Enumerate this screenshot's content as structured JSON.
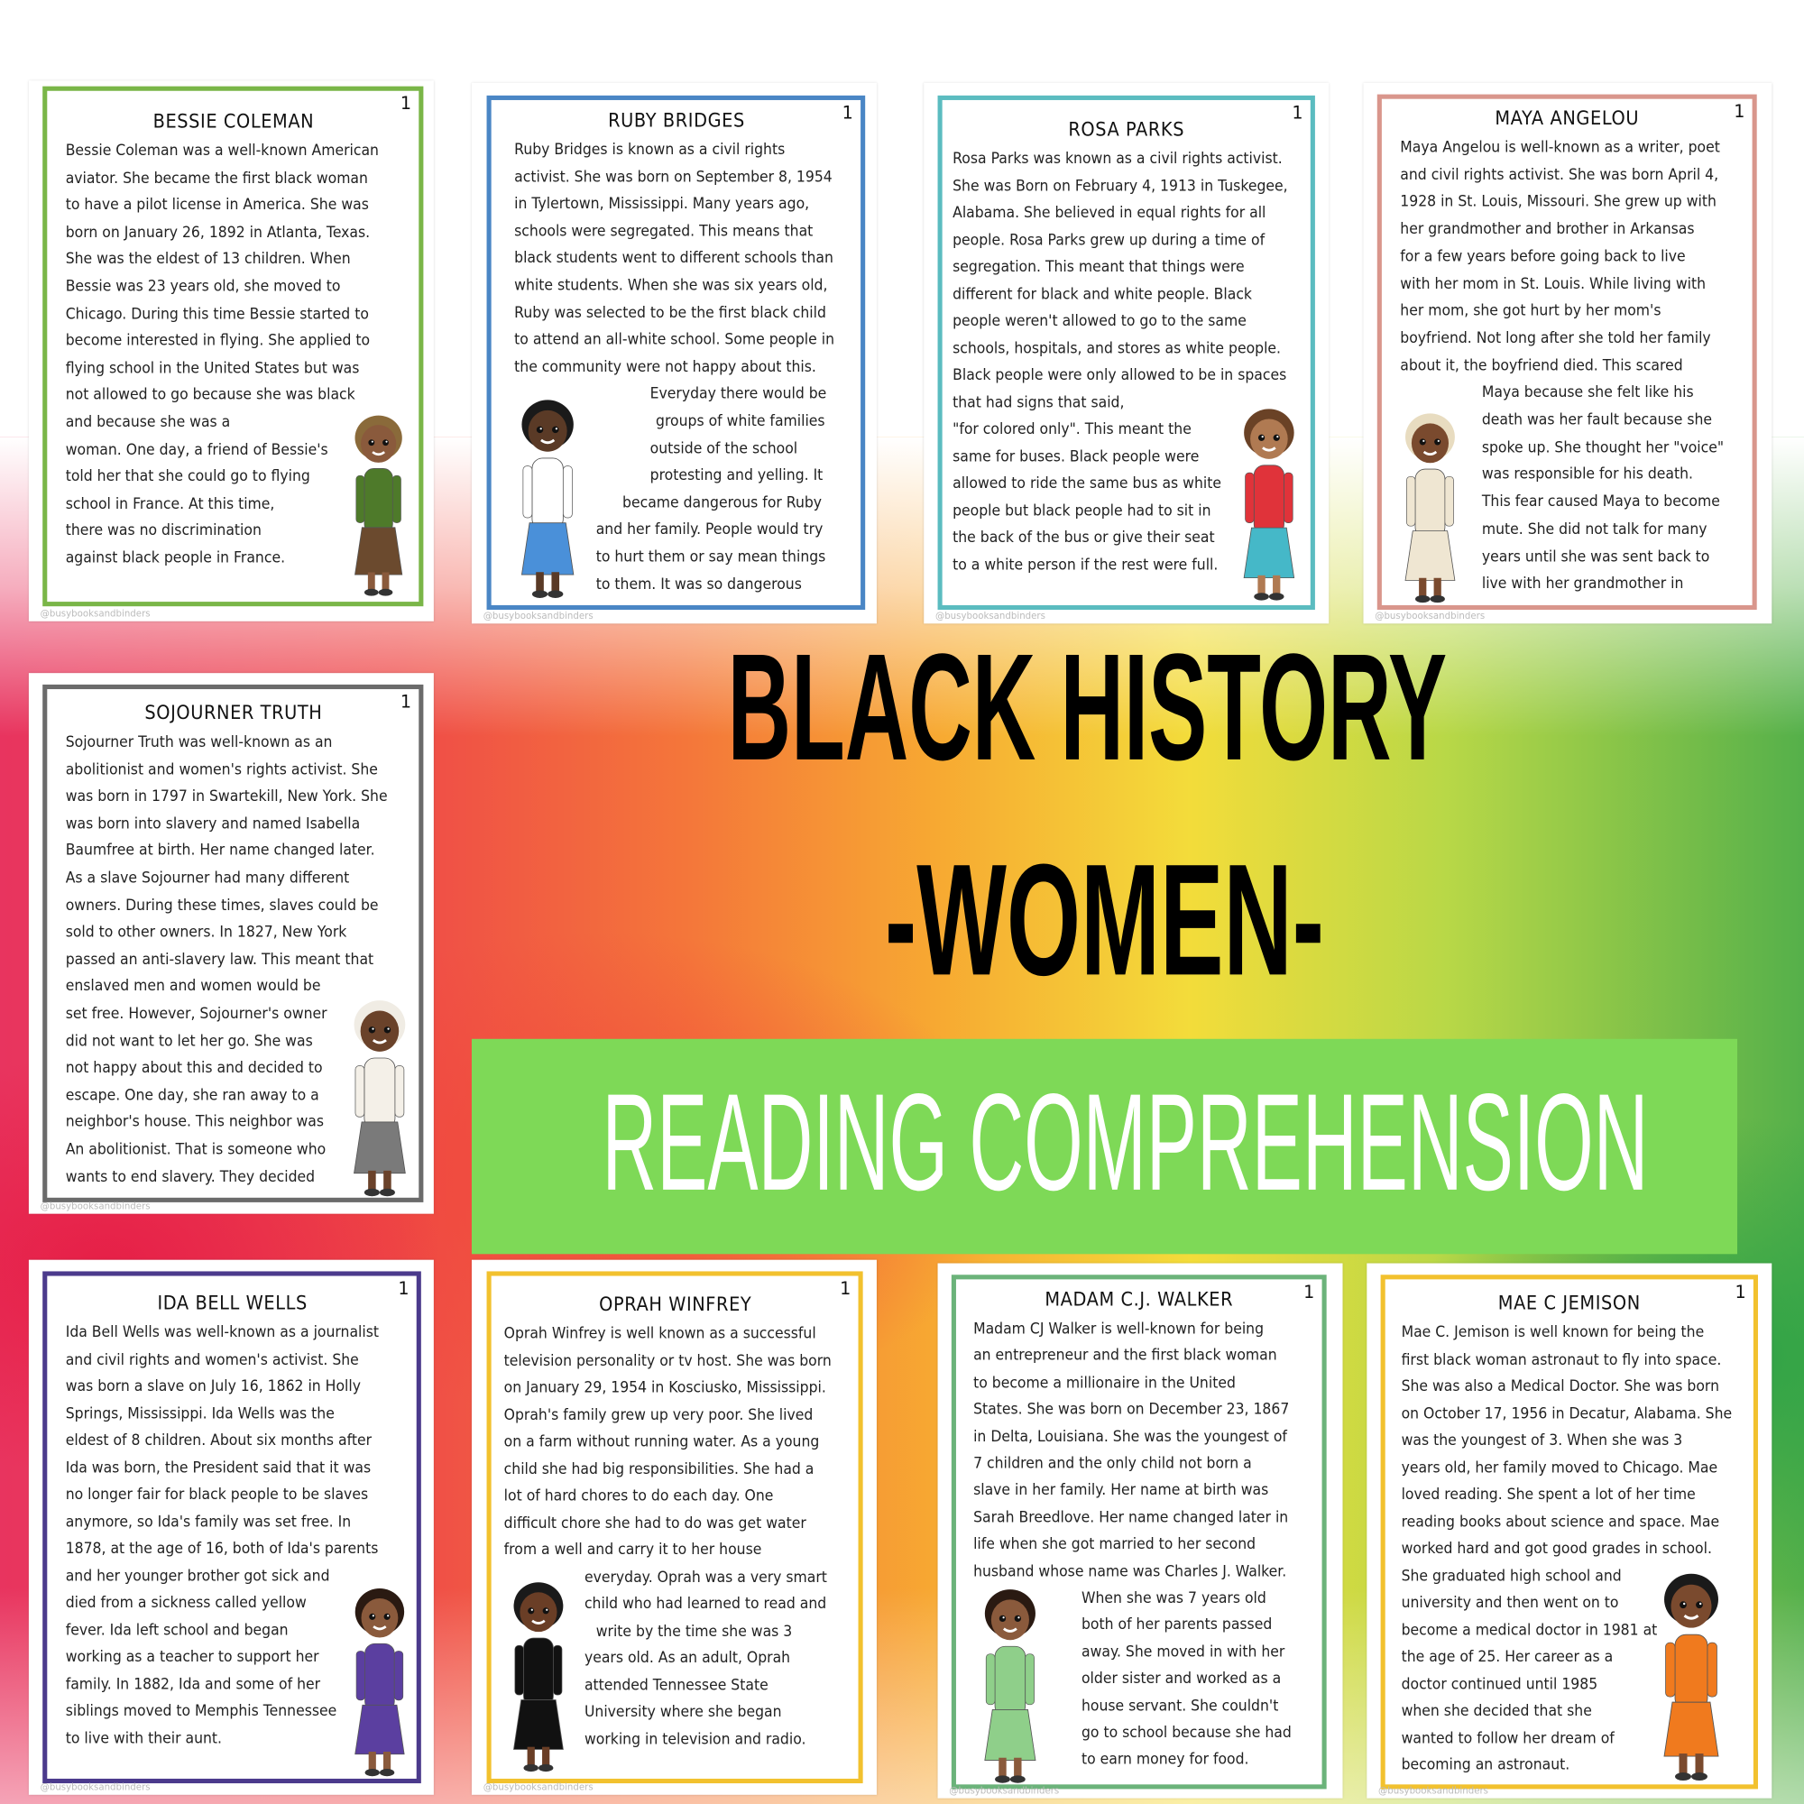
{
  "watermark": "@busybooksandbinders",
  "headline": {
    "line1": "BLACK HISTORY",
    "line2": "-WOMEN-",
    "banner": "READING COMPREHENSION",
    "banner_color": "#7ed957"
  },
  "cards": [
    {
      "title": "BESSIE COLEMAN",
      "page": "1",
      "border_color": "#7ab648",
      "figure": {
        "skin": "#8a5a3c",
        "hair": "#8a6a3a",
        "top": "#4e7a2a",
        "bottom": "#6b4a2e"
      },
      "lines": [
        "Bessie Coleman was a well-known American",
        "aviator. She became the first black woman",
        "to have a pilot license in America.  She was",
        "born on January 26, 1892 in Atlanta, Texas.",
        "She was the eldest of 13 children. When",
        "Bessie was 23 years old, she moved to",
        "Chicago. During this time Bessie started to",
        "become interested in flying. She applied to",
        "flying school in the United States but was",
        "not allowed to go because she was black",
        "and because she was a",
        "woman. One day, a friend of Bessie's",
        "told her that she could go to flying",
        "school in France. At this time,",
        "there was no discrimination",
        "against black people in France."
      ]
    },
    {
      "title": "RUBY BRIDGES",
      "page": "1",
      "border_color": "#4a86c5",
      "figure": {
        "skin": "#5a3a26",
        "hair": "#1a1a1a",
        "top": "#ffffff",
        "bottom": "#4a90d9"
      },
      "lines": [
        "Ruby Bridges is known as a civil rights",
        "activist. She was born on September 8, 1954",
        "in Tylertown, Mississippi. Many years ago,",
        "schools were segregated. This means that",
        "black students went to different schools than",
        "white students. When she was six years old,",
        "Ruby was selected to be the first black child",
        "to attend an all-white school. Some people in",
        "the community were not happy about this.",
        "Everyday there would be",
        "groups of white families",
        "outside of the school",
        "protesting and yelling. It",
        "became dangerous for Ruby",
        "and her family. People would try",
        "to hurt them or say mean things",
        "to them. It was so dangerous"
      ]
    },
    {
      "title": "ROSA PARKS",
      "page": "1",
      "border_color": "#5bbcc0",
      "figure": {
        "skin": "#b07a52",
        "hair": "#6a4226",
        "top": "#e0333a",
        "bottom": "#45b8c8"
      },
      "lines": [
        "Rosa Parks was known as a civil rights activist.",
        "She was Born on February 4, 1913 in Tuskegee,",
        "Alabama. She believed in equal rights for all",
        "people. Rosa Parks grew up during a time of",
        "segregation. This meant that things were",
        "different for black and white people. Black",
        "people weren't allowed to go to the same",
        "schools, hospitals, and stores as white people.",
        "Black people were only allowed to be in spaces",
        "that had signs that said,",
        "\"for colored only\". This meant the",
        "same for buses. Black people were",
        "allowed to ride the same bus as white",
        "people but black people had to sit in",
        "the back of the bus or give their seat",
        "to a white person if the rest were full."
      ]
    },
    {
      "title": "MAYA ANGELOU",
      "page": "1",
      "border_color": "#d9968c",
      "figure": {
        "skin": "#7a4a2e",
        "hair": "#e8dcc0",
        "top": "#efe6d2",
        "bottom": "#efe6d2"
      },
      "lines": [
        "Maya Angelou is well-known as a writer, poet",
        "and civil rights activist. She was born April 4,",
        "1928 in St. Louis, Missouri.  She grew up with",
        "her grandmother and brother in Arkansas",
        "for a few years before going back to live",
        "with her mom in St. Louis. While living with",
        "her mom, she got hurt by her mom's",
        "boyfriend. Not long after she told her family",
        "about it, the boyfriend died. This scared",
        "Maya because she felt like his",
        "death was her fault because she",
        "spoke up. She thought her \"voice\"",
        "was responsible for his death.",
        "This fear caused Maya to become",
        "mute. She did not talk for many",
        "years until she was sent back to",
        "live with her grandmother in"
      ]
    },
    {
      "title": "SOJOURNER TRUTH",
      "page": "1",
      "border_color": "#6b6b6b",
      "figure": {
        "skin": "#6a422a",
        "hair": "#f0ece4",
        "top": "#f4f0e8",
        "bottom": "#7a7a7a"
      },
      "lines": [
        "Sojourner Truth was well-known as an",
        "abolitionist and women's rights activist. She",
        "was born in 1797 in Swartekill, New York. She",
        "was born into slavery and named Isabella",
        "Baumfree at birth. Her name changed later.",
        "As a slave Sojourner had many different",
        "owners. During these times, slaves could be",
        "sold to other owners. In 1827, New York",
        "passed an anti-slavery law. This meant that",
        "enslaved men and women would be",
        "set free. However, Sojourner's owner",
        "did not want to let her go. She was",
        "not happy about this and decided to",
        "escape. One day, she ran away to a",
        "neighbor's house. This neighbor was",
        "An abolitionist. That is someone who",
        "wants to end slavery. They decided"
      ]
    },
    {
      "title": "IDA BELL WELLS",
      "page": "1",
      "border_color": "#4b3a8c",
      "figure": {
        "skin": "#8a5a3c",
        "hair": "#2a1a12",
        "top": "#5b3fa0",
        "bottom": "#5b3fa0"
      },
      "lines": [
        "Ida Bell Wells was well-known as a journalist",
        "and civil rights and women's activist. She",
        "was born a slave on July 16, 1862 in Holly",
        "Springs, Mississippi. Ida Wells was the",
        "eldest of 8 children. About six months after",
        "Ida was born, the President said that it was",
        "no longer fair for black people to be slaves",
        "anymore, so Ida's family was set free. In",
        "1878, at the age of 16, both of Ida's parents",
        "and her younger brother got sick and",
        "died from a sickness called yellow",
        "fever. Ida left school and began",
        "working as a teacher to support her",
        "family. In 1882, Ida and some of her",
        "siblings moved to Memphis Tennessee",
        "to live with their aunt."
      ]
    },
    {
      "title": "OPRAH WINFREY",
      "page": "1",
      "border_color": "#f2c12e",
      "figure": {
        "skin": "#6a3e26",
        "hair": "#1a1a1a",
        "top": "#111111",
        "bottom": "#111111"
      },
      "lines": [
        "Oprah Winfrey is well known as a successful",
        "television personality or tv host. She was born",
        "on January 29, 1954 in Kosciusko, Mississippi.",
        "Oprah's family grew up very poor. She lived",
        "on a farm without running water. As a young",
        "child she had big responsibilities. She had a",
        "lot of hard chores to do each day. One",
        "difficult chore she had to do was get water",
        "from a well and carry it to her house",
        "everyday. Oprah was a very smart",
        "child who had learned to read and",
        "write by the time she was 3",
        "years old. As an adult, Oprah",
        "attended Tennessee State",
        "University where she began",
        "working in television and radio."
      ]
    },
    {
      "title": "MADAM C.J. WALKER",
      "page": "1",
      "border_color": "#6bb37a",
      "figure": {
        "skin": "#8a5a3c",
        "hair": "#2a1a12",
        "top": "#8fcf8a",
        "bottom": "#8fcf8a"
      },
      "lines": [
        "Madam CJ Walker is well-known for being",
        "an entrepreneur and the first black woman",
        "to become a millionaire in the United",
        "States. She was born on December 23, 1867",
        "in Delta, Louisiana. She was the youngest of",
        "7 children and the only child not born a",
        "slave in her family. Her name at birth was",
        "Sarah Breedlove. Her name changed later in",
        "life when she got married to her second",
        "husband whose name was Charles J. Walker.",
        "When she was 7 years old",
        "both of her parents passed",
        "away. She moved  in with her",
        "older sister and worked as a",
        "house servant. She couldn't",
        "go to school because she had",
        "to earn money for food."
      ]
    },
    {
      "title": "MAE C JEMISON",
      "page": "1",
      "border_color": "#f2c12e",
      "figure": {
        "skin": "#7a4a2e",
        "hair": "#1a1a1a",
        "top": "#f07a1e",
        "bottom": "#f07a1e"
      },
      "lines": [
        "Mae C. Jemison is well known for being the",
        "first black woman astronaut to fly into space.",
        "She was also a Medical Doctor. She was born",
        "on October 17, 1956 in Decatur, Alabama. She",
        "was the youngest of 3. When she was 3",
        "years old, her family moved to Chicago. Mae",
        "loved reading. She spent a lot of her time",
        "reading books about science and space. Mae",
        "worked hard and got good grades in school.",
        "She graduated high school and",
        "university and then went on to",
        "become a medical doctor in 1981 at",
        "the age of 25. Her career as a",
        "doctor continued until 1985",
        "when she decided that she",
        "wanted to follow her dream of",
        "becoming an astronaut."
      ]
    }
  ]
}
